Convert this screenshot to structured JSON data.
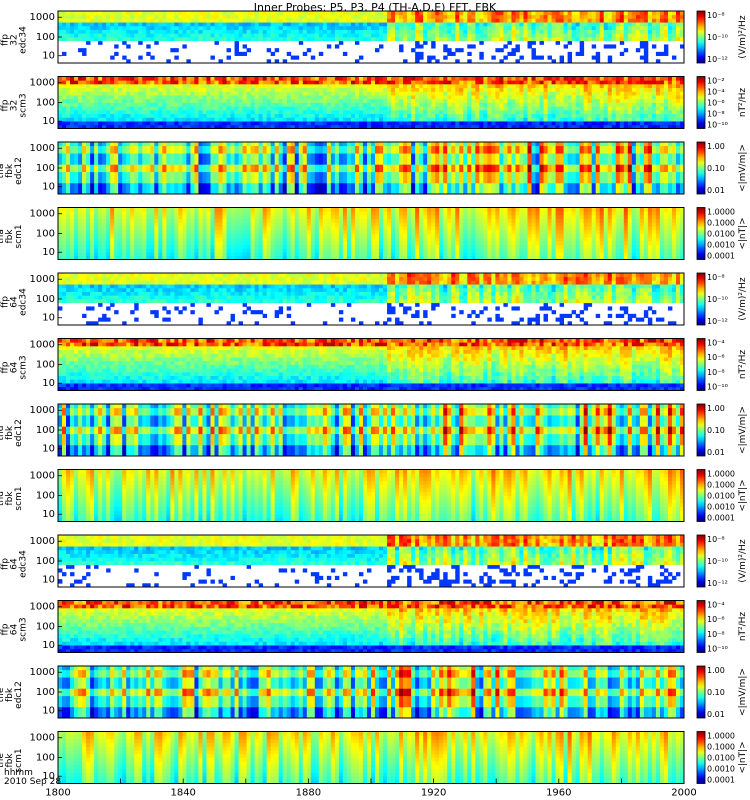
{
  "title": "Inner Probes: P5, P3, P4 (TH-A,D,E) FFT, FBK",
  "footer": {
    "label1": "hhmm",
    "label2": "2010 Sep 28"
  },
  "x_ticks": [
    "1800",
    "1820",
    "1840",
    "1860",
    "1880",
    "1900",
    "1920",
    "1940",
    "1960",
    "1980",
    "2000"
  ],
  "chart_data": [
    {
      "type": "heatmap",
      "ylabel": [
        "tha",
        "ffp",
        "32",
        "edc34"
      ],
      "y_ticks": [
        "1000",
        "100",
        "10"
      ],
      "log_y": true,
      "colorbar_unit": "(V/m)²/Hz",
      "colorbar_ticks": [
        "10⁻⁸",
        "10⁻¹⁰",
        "10⁻¹²"
      ],
      "x_range": [
        "1800",
        "2000"
      ]
    },
    {
      "type": "heatmap",
      "ylabel": [
        "tha",
        "ffp",
        "32",
        "scm3"
      ],
      "y_ticks": [
        "1000",
        "100",
        "10"
      ],
      "log_y": true,
      "colorbar_unit": "nT²/Hz",
      "colorbar_ticks": [
        "10⁻²",
        "10⁻⁴",
        "10⁻⁶",
        "10⁻⁸",
        "10⁻¹⁰"
      ],
      "x_range": [
        "1800",
        "2000"
      ]
    },
    {
      "type": "heatmap",
      "ylabel": [
        "tha",
        "fbk",
        "edc12"
      ],
      "y_ticks": [
        "1000",
        "100",
        "10"
      ],
      "log_y": true,
      "colorbar_unit": "<|mV/m|>",
      "colorbar_ticks": [
        "1.00",
        "0.10",
        "0.01"
      ],
      "x_range": [
        "1800",
        "2000"
      ]
    },
    {
      "type": "heatmap",
      "ylabel": [
        "tha",
        "fbk",
        "scm1"
      ],
      "y_ticks": [
        "1000",
        "100",
        "10"
      ],
      "log_y": true,
      "colorbar_unit": "<|nT|>",
      "colorbar_ticks": [
        "1.0000",
        "0.1000",
        "0.0100",
        "0.0010",
        "0.0001"
      ],
      "x_range": [
        "1800",
        "2000"
      ]
    },
    {
      "type": "heatmap",
      "ylabel": [
        "thd",
        "ffp",
        "64",
        "edc34"
      ],
      "y_ticks": [
        "1000",
        "100",
        "10"
      ],
      "log_y": true,
      "colorbar_unit": "(V/m)²/Hz",
      "colorbar_ticks": [
        "10⁻⁸",
        "10⁻¹⁰",
        "10⁻¹²"
      ],
      "x_range": [
        "1800",
        "2000"
      ]
    },
    {
      "type": "heatmap",
      "ylabel": [
        "thd",
        "ffp",
        "64",
        "scm3"
      ],
      "y_ticks": [
        "1000",
        "100",
        "10"
      ],
      "log_y": true,
      "colorbar_unit": "nT²/Hz",
      "colorbar_ticks": [
        "10⁻⁴",
        "10⁻⁶",
        "10⁻⁸",
        "10⁻¹⁰"
      ],
      "x_range": [
        "1800",
        "2000"
      ]
    },
    {
      "type": "heatmap",
      "ylabel": [
        "thd",
        "fbk",
        "edc12"
      ],
      "y_ticks": [
        "1000",
        "100",
        "10"
      ],
      "log_y": true,
      "colorbar_unit": "<|mV/m|>",
      "colorbar_ticks": [
        "1.00",
        "0.10",
        "0.01"
      ],
      "x_range": [
        "1800",
        "2000"
      ]
    },
    {
      "type": "heatmap",
      "ylabel": [
        "thd",
        "fbk",
        "scm1"
      ],
      "y_ticks": [
        "1000",
        "100",
        "10"
      ],
      "log_y": true,
      "colorbar_unit": "<|nT|>",
      "colorbar_ticks": [
        "1.0000",
        "0.1000",
        "0.0100",
        "0.0010",
        "0.0001"
      ],
      "x_range": [
        "1800",
        "2000"
      ]
    },
    {
      "type": "heatmap",
      "ylabel": [
        "the",
        "ffp",
        "64",
        "edc34"
      ],
      "y_ticks": [
        "1000",
        "100",
        "10"
      ],
      "log_y": true,
      "colorbar_unit": "(V/m)²/Hz",
      "colorbar_ticks": [
        "10⁻⁸",
        "10⁻¹⁰",
        "10⁻¹²"
      ],
      "x_range": [
        "1800",
        "2000"
      ]
    },
    {
      "type": "heatmap",
      "ylabel": [
        "the",
        "ffp",
        "64",
        "scm3"
      ],
      "y_ticks": [
        "1000",
        "100",
        "10"
      ],
      "log_y": true,
      "colorbar_unit": "nT²/Hz",
      "colorbar_ticks": [
        "10⁻⁴",
        "10⁻⁶",
        "10⁻⁸",
        "10⁻¹⁰"
      ],
      "x_range": [
        "1800",
        "2000"
      ]
    },
    {
      "type": "heatmap",
      "ylabel": [
        "the",
        "fbk",
        "edc12"
      ],
      "y_ticks": [
        "1000",
        "100",
        "10"
      ],
      "log_y": true,
      "colorbar_unit": "<|mV/m|>",
      "colorbar_ticks": [
        "1.00",
        "0.10",
        "0.01"
      ],
      "x_range": [
        "1800",
        "2000"
      ]
    },
    {
      "type": "heatmap",
      "ylabel": [
        "the",
        "fbk",
        "scm1"
      ],
      "y_ticks": [
        "1000",
        "100",
        "10"
      ],
      "log_y": true,
      "colorbar_unit": "<|nT|>",
      "colorbar_ticks": [
        "1.0000",
        "0.1000",
        "0.0100",
        "0.0010",
        "0.0001"
      ],
      "x_range": [
        "1800",
        "2000"
      ]
    }
  ]
}
